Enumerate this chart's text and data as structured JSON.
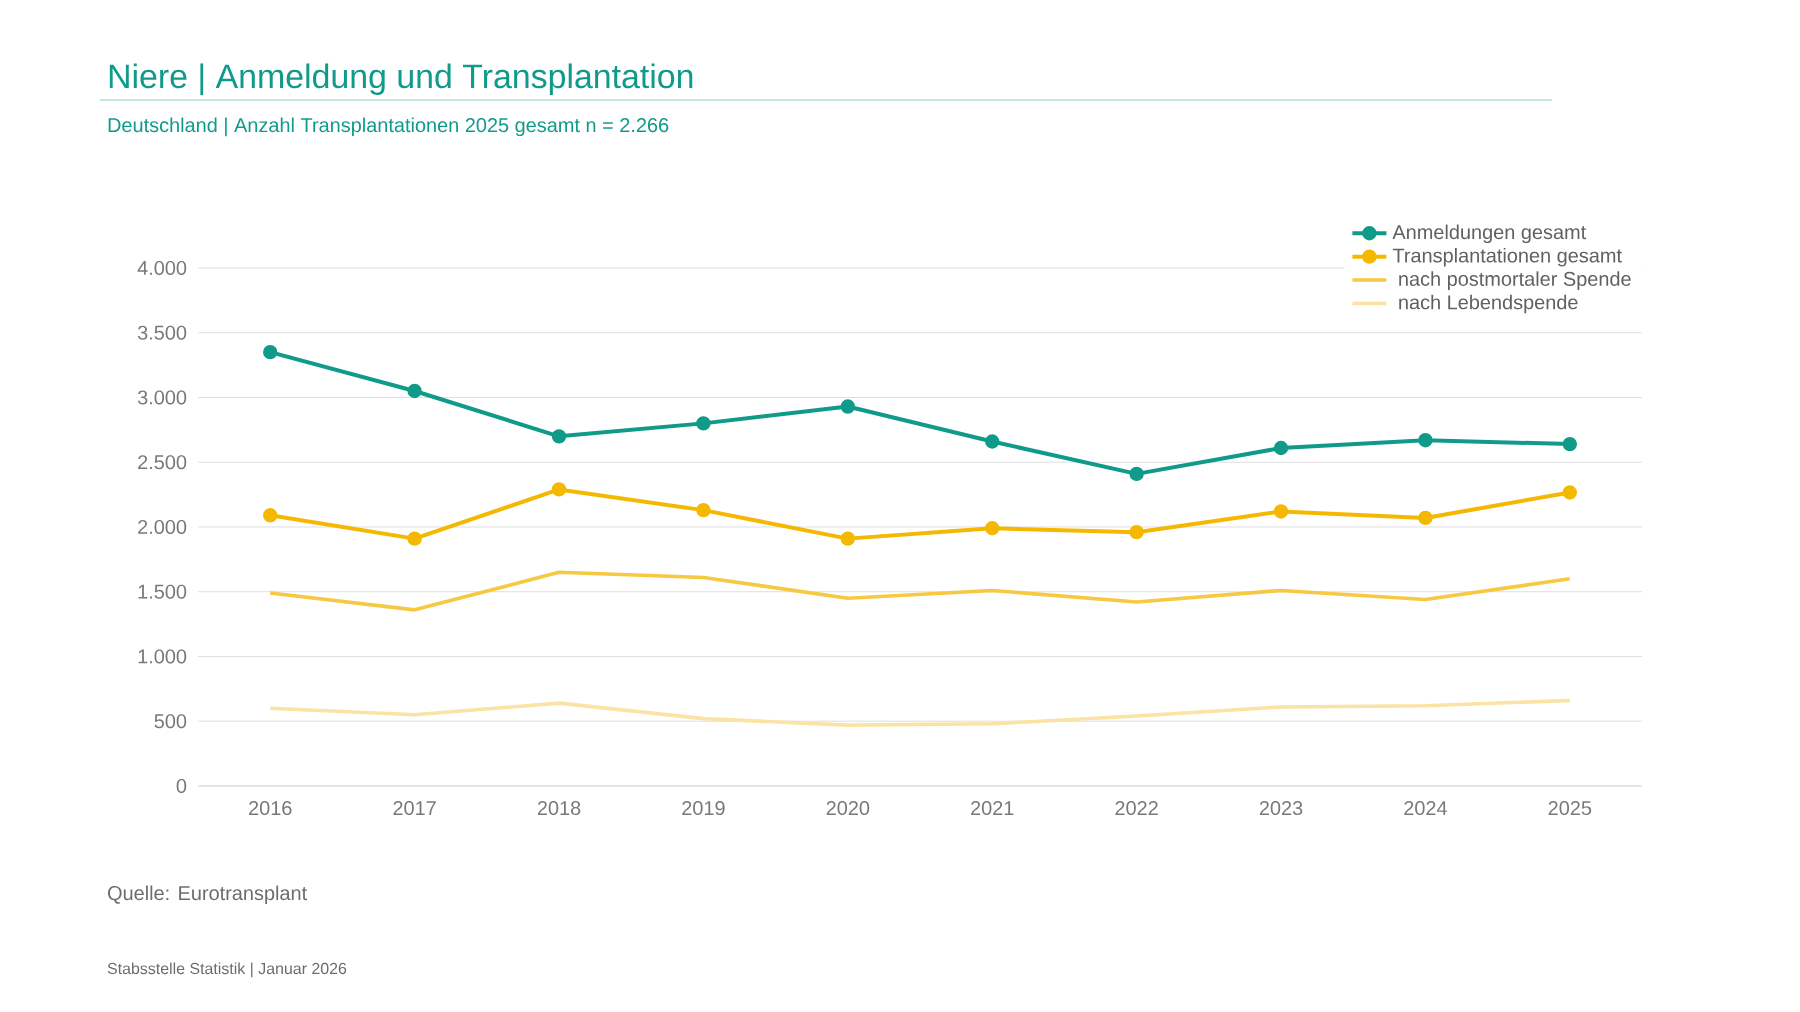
{
  "chart_data": {
    "type": "line",
    "title": "Niere | Anmeldung und Transplantation",
    "subtitle": "Deutschland | Anzahl Transplantationen 2025 gesamt n = 2.266",
    "categories": [
      "2016",
      "2017",
      "2018",
      "2019",
      "2020",
      "2021",
      "2022",
      "2023",
      "2024",
      "2025"
    ],
    "series": [
      {
        "name": "Anmeldungen gesamt",
        "color": "#109a8a",
        "marker": "circle",
        "values": [
          3350,
          3050,
          2700,
          2800,
          2930,
          2660,
          2410,
          2610,
          2670,
          2640
        ]
      },
      {
        "name": "Transplantationen gesamt",
        "color": "#f5b800",
        "marker": "circle",
        "values": [
          2090,
          1910,
          2290,
          2130,
          1910,
          1990,
          1960,
          2120,
          2070,
          2266
        ]
      },
      {
        "name": "  nach postmortaler Spende",
        "color": "#f7c842",
        "marker": "none",
        "values": [
          1490,
          1360,
          1650,
          1610,
          1450,
          1510,
          1420,
          1510,
          1440,
          1600
        ]
      },
      {
        "name": "  nach Lebendspende",
        "color": "#fbe3a5",
        "marker": "none",
        "values": [
          600,
          550,
          640,
          520,
          470,
          480,
          540,
          610,
          620,
          660
        ]
      }
    ],
    "ylim": [
      0,
      4000
    ],
    "yticks": [
      0,
      500,
      {
        "value": 1000,
        "label": "1.000"
      },
      {
        "value": 1500,
        "label": "1.500"
      },
      {
        "value": 2000,
        "label": "2.000"
      },
      {
        "value": 2500,
        "label": "2.500"
      },
      {
        "value": 3000,
        "label": "3.000"
      },
      {
        "value": 3500,
        "label": "3.500"
      },
      {
        "value": 4000,
        "label": "4.000"
      }
    ],
    "grid": "y",
    "legend": "top right",
    "line_style": "solid",
    "annotations": [
      "Quelle: Eurotransplant",
      "Stabsstelle Statistik | Januar 2026"
    ]
  }
}
